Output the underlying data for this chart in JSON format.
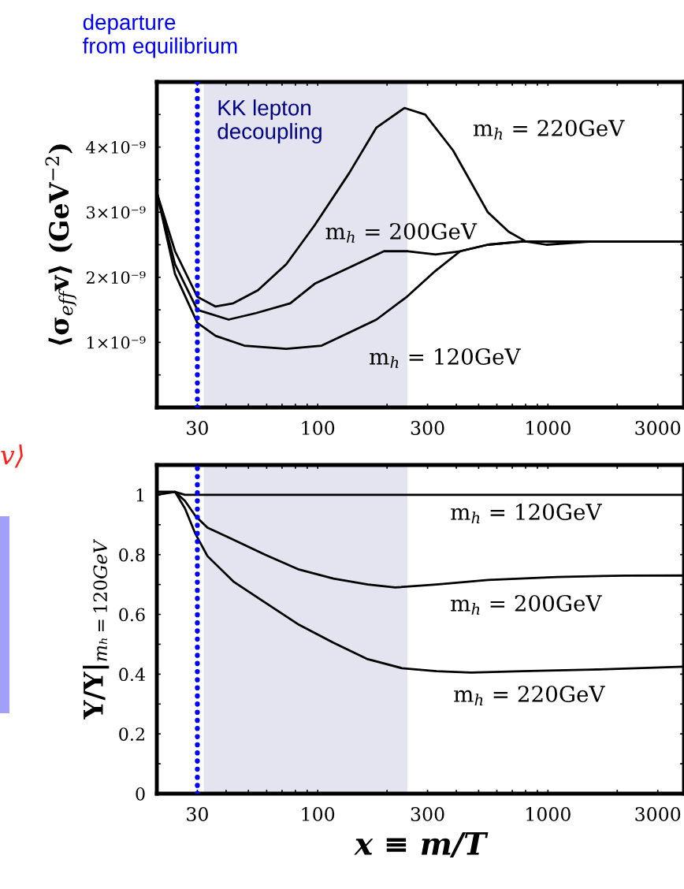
{
  "chart_data": [
    {
      "type": "line",
      "ylabel": "⟨σ$_{eff}$v⟩ (GeV$^{−2}$)",
      "log": "x",
      "xlim": [
        20,
        3900
      ],
      "ylim": [
        0,
        5e-09
      ],
      "xticks": [
        {
          "value": 20,
          "label": null
        },
        30,
        {
          "value": 40,
          "label": null
        },
        {
          "value": 50,
          "label": null
        },
        {
          "value": 60,
          "label": null
        },
        {
          "value": 70,
          "label": null
        },
        {
          "value": 80,
          "label": null
        },
        {
          "value": 90,
          "label": null
        },
        100,
        {
          "value": 200,
          "label": null
        },
        300,
        {
          "value": 400,
          "label": null
        },
        {
          "value": 500,
          "label": null
        },
        {
          "value": 600,
          "label": null
        },
        {
          "value": 700,
          "label": null
        },
        {
          "value": 800,
          "label": null
        },
        {
          "value": 900,
          "label": null
        },
        1000,
        {
          "value": 2000,
          "label": null
        },
        3000
      ],
      "yticks": [
        {
          "value": 5e-10,
          "label": null
        },
        {
          "value": 1e-09,
          "label": "1×10⁻⁹"
        },
        {
          "value": 1.5e-09,
          "label": null
        },
        {
          "value": 2e-09,
          "label": "2×10⁻⁹"
        },
        {
          "value": 2.5e-09,
          "label": null
        },
        {
          "value": 3e-09,
          "label": "3×10⁻⁹"
        },
        {
          "value": 3.5e-09,
          "label": null
        },
        {
          "value": 4e-09,
          "label": "4×10⁻⁹"
        },
        {
          "value": 4.5e-09,
          "label": null
        }
      ],
      "grid": false,
      "legend": false,
      "marker": "none",
      "line_style": "solid",
      "series": [
        {
          "name": "m$_{h}$ = 220GeV",
          "color": "#000000",
          "x": [
            20,
            24,
            30,
            36,
            43,
            55,
            73,
            97,
            137,
            180,
            238,
            293,
            387,
            548,
            675,
            802,
            985,
            1550,
            3900
          ],
          "values": [
            3.3e-09,
            2.4e-09,
            1.7e-09,
            1.55e-09,
            1.6e-09,
            1.8e-09,
            2.2e-09,
            2.8e-09,
            3.6e-09,
            4.3e-09,
            4.6e-09,
            4.5e-09,
            3.95e-09,
            3e-09,
            2.7e-09,
            2.55e-09,
            2.5e-09,
            2.55e-09,
            2.55e-09
          ]
        },
        {
          "name": "m$_{h}$ = 200GeV",
          "color": "#000000",
          "x": [
            20,
            24,
            30,
            41,
            54,
            76,
            97,
            137,
            194,
            247,
            325,
            416,
            548,
            775,
            1550,
            3900
          ],
          "values": [
            3.3e-09,
            2.2e-09,
            1.5e-09,
            1.35e-09,
            1.45e-09,
            1.6e-09,
            1.9e-09,
            2.15e-09,
            2.4e-09,
            2.4e-09,
            2.35e-09,
            2.4e-09,
            2.5e-09,
            2.55e-09,
            2.55e-09,
            2.55e-09
          ]
        },
        {
          "name": "m$_{h}$ = 120GeV",
          "color": "#000000",
          "x": [
            20,
            24,
            30,
            36,
            48,
            73,
            104,
            137,
            180,
            244,
            325,
            416,
            548,
            775,
            1550,
            3900
          ],
          "values": [
            3.3e-09,
            2.05e-09,
            1.3e-09,
            1.1e-09,
            9.5e-10,
            9e-10,
            9.5e-10,
            1.15e-09,
            1.35e-09,
            1.7e-09,
            2.1e-09,
            2.4e-09,
            2.5e-09,
            2.55e-09,
            2.55e-09,
            2.55e-09
          ]
        }
      ],
      "ref_lines": [
        {
          "axis": "x",
          "value": 30,
          "label": "departure\nfrom equilibrium",
          "color": "#0000ff",
          "line_style": "dotted"
        }
      ],
      "bands": [
        {
          "axis": "x",
          "from": 32,
          "to": 245,
          "label": "KK lepton\ndecoupling",
          "color": "#e4e4f0"
        }
      ],
      "annotations": [
        "v⟩"
      ]
    },
    {
      "type": "line",
      "xlabel": "x ≡ m/T",
      "ylabel": "Y/Y|$_{mₕ=120GeV}$",
      "log": "x",
      "xlim": [
        20,
        3900
      ],
      "ylim": [
        0,
        1.1
      ],
      "xticks": [
        {
          "value": 20,
          "label": null
        },
        30,
        {
          "value": 40,
          "label": null
        },
        {
          "value": 50,
          "label": null
        },
        {
          "value": 60,
          "label": null
        },
        {
          "value": 70,
          "label": null
        },
        {
          "value": 80,
          "label": null
        },
        {
          "value": 90,
          "label": null
        },
        100,
        {
          "value": 200,
          "label": null
        },
        300,
        {
          "value": 400,
          "label": null
        },
        {
          "value": 500,
          "label": null
        },
        {
          "value": 600,
          "label": null
        },
        {
          "value": 700,
          "label": null
        },
        {
          "value": 800,
          "label": null
        },
        {
          "value": 900,
          "label": null
        },
        1000,
        {
          "value": 2000,
          "label": null
        },
        3000
      ],
      "yticks": [
        0,
        {
          "value": 0.1,
          "label": null
        },
        0.2,
        {
          "value": 0.3,
          "label": null
        },
        0.4,
        {
          "value": 0.5,
          "label": null
        },
        0.6,
        {
          "value": 0.7,
          "label": null
        },
        0.8,
        {
          "value": 0.9,
          "label": null
        },
        1
      ],
      "grid": false,
      "legend": false,
      "marker": "none",
      "line_style": "solid",
      "series": [
        {
          "name": "m$_{h}$ = 120GeV",
          "color": "#000000",
          "x": [
            20,
            24,
            26.5,
            3900
          ],
          "values": [
            1.0,
            1.01,
            1.0,
            1.0
          ]
        },
        {
          "name": "m$_{h}$ = 200GeV",
          "color": "#000000",
          "x": [
            20,
            24,
            26.5,
            29.4,
            33.2,
            43,
            59,
            83,
            117,
            165,
            217,
            328,
            550,
            1095,
            2180,
            3900
          ],
          "values": [
            1.01,
            1.01,
            0.98,
            0.93,
            0.89,
            0.85,
            0.8,
            0.75,
            0.72,
            0.7,
            0.69,
            0.7,
            0.715,
            0.725,
            0.73,
            0.73
          ]
        },
        {
          "name": "m$_{h}$ = 220GeV",
          "color": "#000000",
          "x": [
            20,
            24,
            26.5,
            29.4,
            33.2,
            43,
            59,
            83,
            117,
            165,
            232,
            328,
            463,
            776,
            1547,
            3900
          ],
          "values": [
            1.01,
            1.01,
            0.955,
            0.87,
            0.795,
            0.71,
            0.64,
            0.565,
            0.505,
            0.45,
            0.42,
            0.41,
            0.405,
            0.41,
            0.415,
            0.425
          ]
        }
      ],
      "ref_lines": [
        {
          "axis": "x",
          "value": 30,
          "color": "#0000ff",
          "line_style": "dotted"
        }
      ],
      "bands": [
        {
          "axis": "x",
          "from": 32,
          "to": 245,
          "color": "#e4e4f0"
        }
      ]
    }
  ]
}
